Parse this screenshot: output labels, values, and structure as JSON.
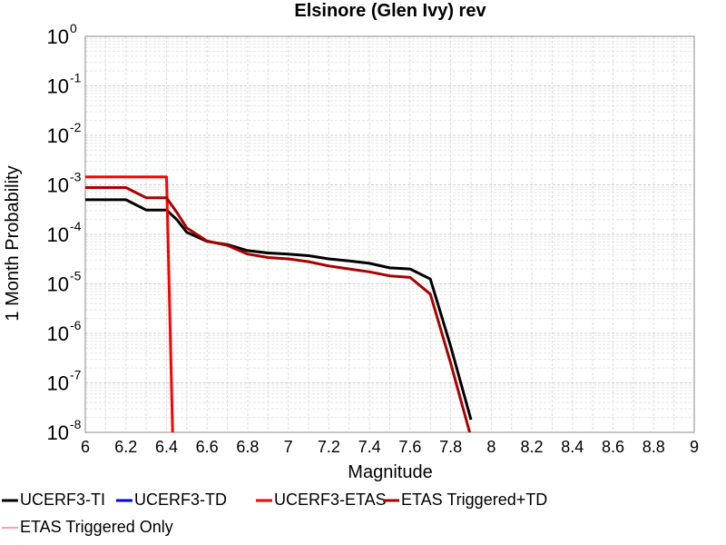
{
  "chart_data": {
    "type": "line",
    "title": "Elsinore (Glen Ivy) rev",
    "xlabel": "Magnitude",
    "ylabel": "1 Month Probability",
    "xlim": [
      6,
      9
    ],
    "ylim": [
      1e-08,
      1
    ],
    "yscale": "log",
    "grid": true,
    "legend_position": "bottom",
    "x_ticks": [
      "6",
      "6.2",
      "6.4",
      "6.6",
      "6.8",
      "7",
      "7.2",
      "7.4",
      "7.6",
      "7.8",
      "8",
      "8.2",
      "8.4",
      "8.6",
      "8.8",
      "9"
    ],
    "y_ticks": [
      {
        "base": "10",
        "exp": "0"
      },
      {
        "base": "10",
        "exp": "-1"
      },
      {
        "base": "10",
        "exp": "-2"
      },
      {
        "base": "10",
        "exp": "-3"
      },
      {
        "base": "10",
        "exp": "-4"
      },
      {
        "base": "10",
        "exp": "-5"
      },
      {
        "base": "10",
        "exp": "-6"
      },
      {
        "base": "10",
        "exp": "-7"
      },
      {
        "base": "10",
        "exp": "-8"
      }
    ],
    "series": [
      {
        "name": "UCERF3-TI",
        "color": "#000000",
        "x": [
          6.0,
          6.1,
          6.2,
          6.3,
          6.4,
          6.45,
          6.5,
          6.6,
          6.7,
          6.8,
          6.9,
          7.0,
          7.1,
          7.2,
          7.3,
          7.4,
          7.5,
          7.6,
          7.7,
          7.8,
          7.9
        ],
        "y": [
          0.0005,
          0.0005,
          0.0005,
          0.00031,
          0.00031,
          0.0002,
          0.00011,
          7.2e-05,
          6.2e-05,
          4.7e-05,
          4.2e-05,
          4e-05,
          3.7e-05,
          3.2e-05,
          2.9e-05,
          2.6e-05,
          2.1e-05,
          2e-05,
          1.25e-05,
          5.5e-07,
          1.8e-08
        ]
      },
      {
        "name": "UCERF3-TD",
        "color": "#0000ff",
        "x": [],
        "y": []
      },
      {
        "name": "UCERF3-ETAS",
        "color": "#ff0000",
        "x": [
          6.0,
          6.1,
          6.2,
          6.3,
          6.4,
          6.43
        ],
        "y": [
          0.00145,
          0.00145,
          0.00145,
          0.00145,
          0.00145,
          1e-08
        ]
      },
      {
        "name": "ETAS Triggered+TD",
        "color": "#aa0000",
        "x": [
          6.0,
          6.1,
          6.2,
          6.3,
          6.4,
          6.45,
          6.5,
          6.6,
          6.7,
          6.8,
          6.9,
          7.0,
          7.1,
          7.2,
          7.3,
          7.4,
          7.5,
          7.6,
          7.7,
          7.8,
          7.9
        ],
        "y": [
          0.00088,
          0.00088,
          0.00088,
          0.00055,
          0.00055,
          0.00028,
          0.000135,
          7.3e-05,
          6e-05,
          4e-05,
          3.4e-05,
          3.2e-05,
          2.8e-05,
          2.3e-05,
          2e-05,
          1.75e-05,
          1.45e-05,
          1.35e-05,
          6.2e-06,
          2.5e-07,
          8e-09
        ]
      },
      {
        "name": "ETAS Triggered Only",
        "color": "#ff8080",
        "x": [],
        "y": []
      }
    ]
  }
}
